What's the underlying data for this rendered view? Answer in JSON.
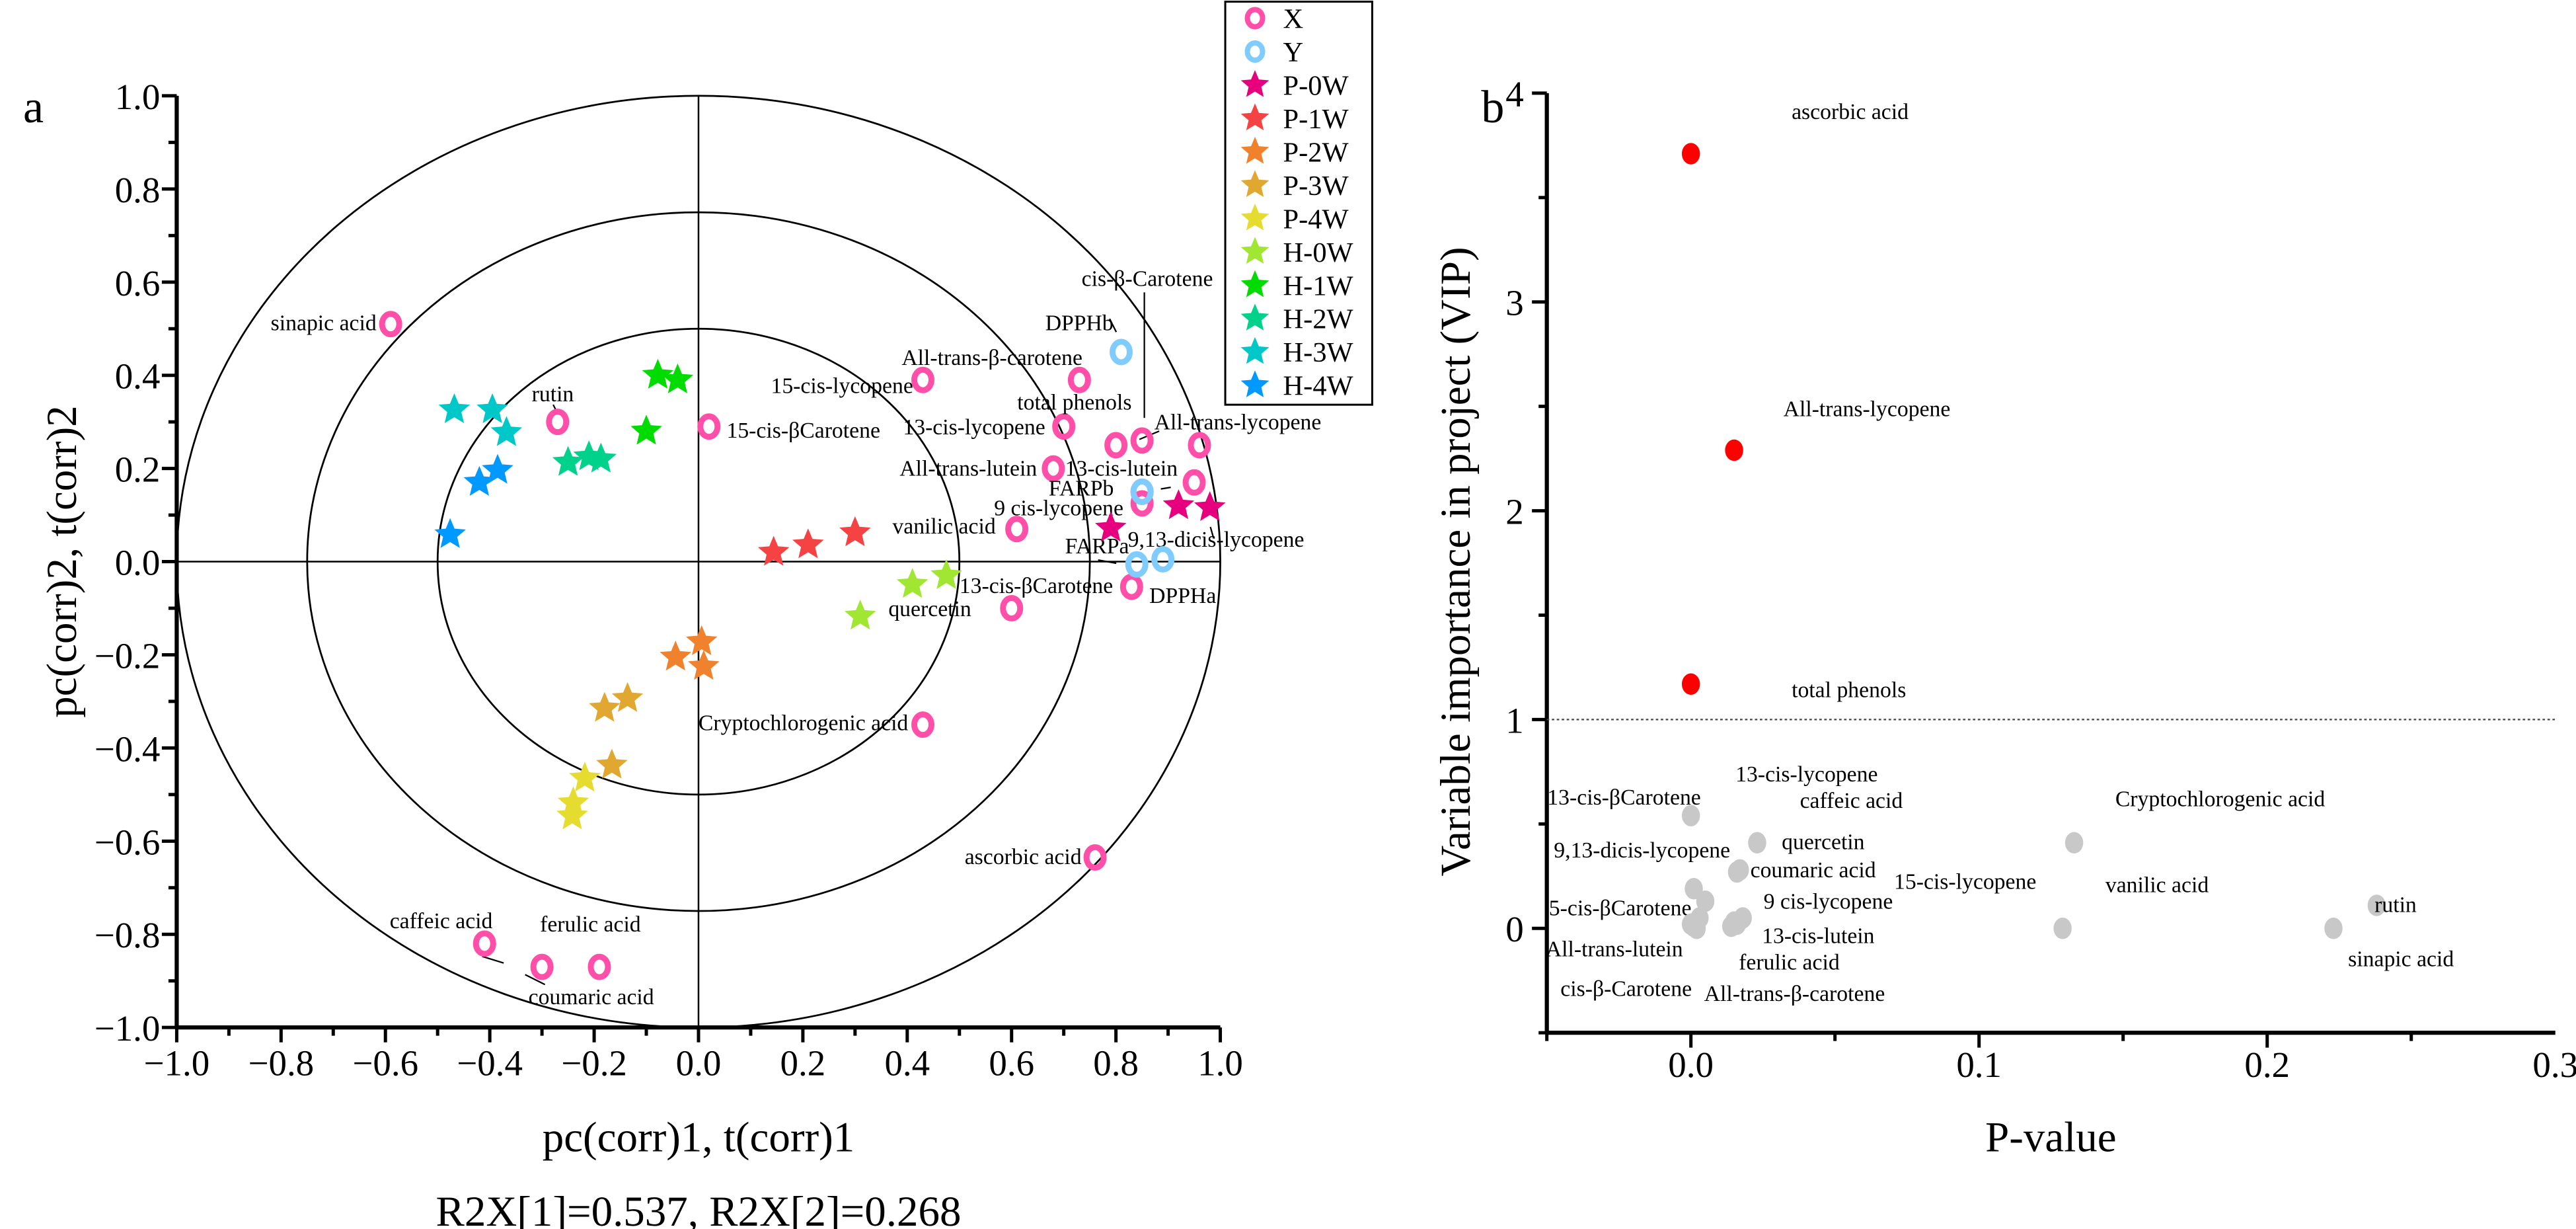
{
  "chart_data": [
    {
      "panel": "a",
      "type": "scatter",
      "xlabel": "pc(corr)1, t(corr)1",
      "ylabel": "pc(corr)2, t(corr)2",
      "subtitle": "R2X[1]=0.537, R2X[2]=0.268",
      "xlim": [
        -1.0,
        1.0
      ],
      "ylim": [
        -1.0,
        1.0
      ],
      "xticks": [
        "-1.0",
        "-0.8",
        "-0.6",
        "-0.4",
        "-0.2",
        "0.0",
        "0.2",
        "0.4",
        "0.6",
        "0.8",
        "1.0"
      ],
      "yticks": [
        "-1.0",
        "-0.8",
        "-0.6",
        "-0.4",
        "-0.2",
        "0.0",
        "0.2",
        "0.4",
        "0.6",
        "0.8",
        "1.0"
      ],
      "reference_ellipses": [
        0.5,
        0.75,
        1.0
      ],
      "grid": false,
      "legend_placement": "top-right",
      "legend": [
        {
          "name": "X",
          "marker": "ring",
          "color": "#ff4fa8"
        },
        {
          "name": "Y",
          "marker": "ring",
          "color": "#80ccff"
        },
        {
          "name": "P-0W",
          "marker": "star",
          "color": "#e6007e"
        },
        {
          "name": "P-1W",
          "marker": "star",
          "color": "#f54242"
        },
        {
          "name": "P-2W",
          "marker": "star",
          "color": "#f0822e"
        },
        {
          "name": "P-3W",
          "marker": "star",
          "color": "#e0a830"
        },
        {
          "name": "P-4W",
          "marker": "star",
          "color": "#e6dc30"
        },
        {
          "name": "H-0W",
          "marker": "star",
          "color": "#a0e632"
        },
        {
          "name": "H-1W",
          "marker": "star",
          "color": "#00dc00"
        },
        {
          "name": "H-2W",
          "marker": "star",
          "color": "#00d28c"
        },
        {
          "name": "H-3W",
          "marker": "star",
          "color": "#00c8c8"
        },
        {
          "name": "H-4W",
          "marker": "star",
          "color": "#0099ff"
        }
      ],
      "variables_x": [
        {
          "label": "sinapic acid",
          "x": -0.59,
          "y": 0.51
        },
        {
          "label": "rutin",
          "x": -0.27,
          "y": 0.3
        },
        {
          "label": "15-cis-βCarotene",
          "x": 0.02,
          "y": 0.29
        },
        {
          "label": "15-cis-lycopene",
          "x": 0.43,
          "y": 0.39
        },
        {
          "label": "All-trans-β-carotene",
          "x": 0.73,
          "y": 0.39
        },
        {
          "label": "13-cis-lycopene",
          "x": 0.7,
          "y": 0.29
        },
        {
          "label": "total phenols",
          "x": 0.8,
          "y": 0.25
        },
        {
          "label": "cis-β-Carotene",
          "x": 0.85,
          "y": 0.26
        },
        {
          "label": "All-trans-lycopene",
          "x": 0.96,
          "y": 0.25
        },
        {
          "label": "All-trans-lutein",
          "x": 0.68,
          "y": 0.2
        },
        {
          "label": "13-cis-lutein",
          "x": 0.95,
          "y": 0.17
        },
        {
          "label": "9 cis-lycopene",
          "x": 0.85,
          "y": 0.15
        },
        {
          "label": "9,13-dicis-lycopene",
          "x": 0.85,
          "y": 0.125
        },
        {
          "label": "vanilic acid",
          "x": 0.61,
          "y": 0.07
        },
        {
          "label": "13-cis-βCarotene",
          "x": 0.83,
          "y": -0.054
        },
        {
          "label": "quercetin",
          "x": 0.6,
          "y": -0.1
        },
        {
          "label": "Cryptochlorogenic acid",
          "x": 0.43,
          "y": -0.35
        },
        {
          "label": "ascorbic acid",
          "x": 0.76,
          "y": -0.635
        },
        {
          "label": "caffeic acid",
          "x": -0.41,
          "y": -0.82
        },
        {
          "label": "coumaric acid",
          "x": -0.3,
          "y": -0.87
        },
        {
          "label": "ferulic acid",
          "x": -0.19,
          "y": -0.87
        }
      ],
      "variables_y": [
        {
          "label": "DPPHb",
          "x": 0.81,
          "y": 0.45
        },
        {
          "label": "FARPb",
          "x": 0.85,
          "y": 0.15
        },
        {
          "label": "FARPa",
          "x": 0.84,
          "y": -0.006
        },
        {
          "label": "DPPHa",
          "x": 0.89,
          "y": 0.005
        }
      ],
      "samples": [
        {
          "group": "P-0W",
          "points": [
            [
              0.79,
              0.072
            ],
            [
              0.92,
              0.12
            ],
            [
              0.98,
              0.116
            ]
          ]
        },
        {
          "group": "P-1W",
          "points": [
            [
              0.144,
              0.02
            ],
            [
              0.21,
              0.036
            ],
            [
              0.3,
              0.062
            ]
          ]
        },
        {
          "group": "P-2W",
          "points": [
            [
              0.006,
              -0.172
            ],
            [
              -0.044,
              -0.205
            ],
            [
              0.01,
              -0.225
            ]
          ]
        },
        {
          "group": "P-3W",
          "points": [
            [
              -0.136,
              -0.294
            ],
            [
              -0.18,
              -0.315
            ],
            [
              -0.166,
              -0.437
            ]
          ]
        },
        {
          "group": "P-4W",
          "points": [
            [
              -0.218,
              -0.465
            ],
            [
              -0.24,
              -0.518
            ],
            [
              -0.242,
              -0.546
            ]
          ]
        },
        {
          "group": "H-0W",
          "points": [
            [
              0.41,
              -0.049
            ],
            [
              0.475,
              -0.03
            ],
            [
              0.31,
              -0.117
            ]
          ]
        },
        {
          "group": "H-1W",
          "points": [
            [
              -0.078,
              0.4
            ],
            [
              -0.04,
              0.39
            ],
            [
              -0.1,
              0.28
            ]
          ]
        },
        {
          "group": "H-2W",
          "points": [
            [
              -0.25,
              0.213
            ],
            [
              -0.21,
              0.225
            ],
            [
              -0.187,
              0.22
            ]
          ]
        },
        {
          "group": "H-3W",
          "points": [
            [
              -0.468,
              0.326
            ],
            [
              -0.395,
              0.326
            ],
            [
              -0.368,
              0.277
            ]
          ]
        },
        {
          "group": "H-4W",
          "points": [
            [
              -0.385,
              0.196
            ],
            [
              -0.42,
              0.17
            ],
            [
              -0.476,
              0.058
            ]
          ]
        }
      ]
    },
    {
      "panel": "b",
      "type": "scatter",
      "xlabel": "P-value",
      "ylabel": "Variable importance in project (VIP)",
      "xlim": [
        -0.05,
        0.3
      ],
      "ylim": [
        -0.5,
        4.0
      ],
      "xticks": [
        "0.0",
        "0.1",
        "0.2",
        "0.3"
      ],
      "yticks": [
        "0",
        "1",
        "2",
        "3",
        "4"
      ],
      "threshold_line": {
        "y": 1,
        "style": "dotted"
      },
      "grid": false,
      "colors": {
        "significant": "#ff0000",
        "not_significant": "#c8c8c8"
      },
      "points": [
        {
          "label": "ascorbic acid",
          "p": 0.0,
          "vip": 3.71,
          "significant": true
        },
        {
          "label": "All-trans-lycopene",
          "p": 0.015,
          "vip": 2.29,
          "significant": true
        },
        {
          "label": "total phenols",
          "p": 0.0,
          "vip": 1.17,
          "significant": true
        },
        {
          "label": "13-cis-βCarotene",
          "p": 0.0,
          "vip": 0.54,
          "significant": false
        },
        {
          "label": "13-cis-lycopene",
          "p": 0.023,
          "vip": 0.41,
          "significant": false
        },
        {
          "label": "caffeic acid",
          "p": 0.017,
          "vip": 0.28,
          "significant": false
        },
        {
          "label": "Cryptochlorogenic acid",
          "p": 0.133,
          "vip": 0.41,
          "significant": false
        },
        {
          "label": "9,13-dicis-lycopene",
          "p": 0.001,
          "vip": 0.19,
          "significant": false
        },
        {
          "label": "quercetin",
          "p": 0.016,
          "vip": 0.27,
          "significant": false
        },
        {
          "label": "coumaric acid",
          "p": 0.018,
          "vip": 0.05,
          "significant": false
        },
        {
          "label": "15-cis-lycopene",
          "p": 0.003,
          "vip": 0.05,
          "significant": false
        },
        {
          "label": "vanilic acid",
          "p": 0.129,
          "vip": 0.0,
          "significant": false
        },
        {
          "label": "rutin",
          "p": 0.238,
          "vip": 0.11,
          "significant": false
        },
        {
          "label": "5-cis-βCarotene",
          "p": 0.005,
          "vip": 0.13,
          "significant": false
        },
        {
          "label": "9 cis-lycopene",
          "p": 0.015,
          "vip": 0.03,
          "significant": false
        },
        {
          "label": "All-trans-lutein",
          "p": 0.0,
          "vip": 0.02,
          "significant": false
        },
        {
          "label": "13-cis-lutein",
          "p": 0.014,
          "vip": 0.01,
          "significant": false
        },
        {
          "label": "ferulic acid",
          "p": 0.016,
          "vip": 0.02,
          "significant": false
        },
        {
          "label": "sinapic acid",
          "p": 0.223,
          "vip": 0.0,
          "significant": false
        },
        {
          "label": "cis-β-Carotene",
          "p": 0.001,
          "vip": 0.01,
          "significant": false
        },
        {
          "label": "All-trans-β-carotene",
          "p": 0.002,
          "vip": 0.0,
          "significant": false
        }
      ]
    }
  ]
}
